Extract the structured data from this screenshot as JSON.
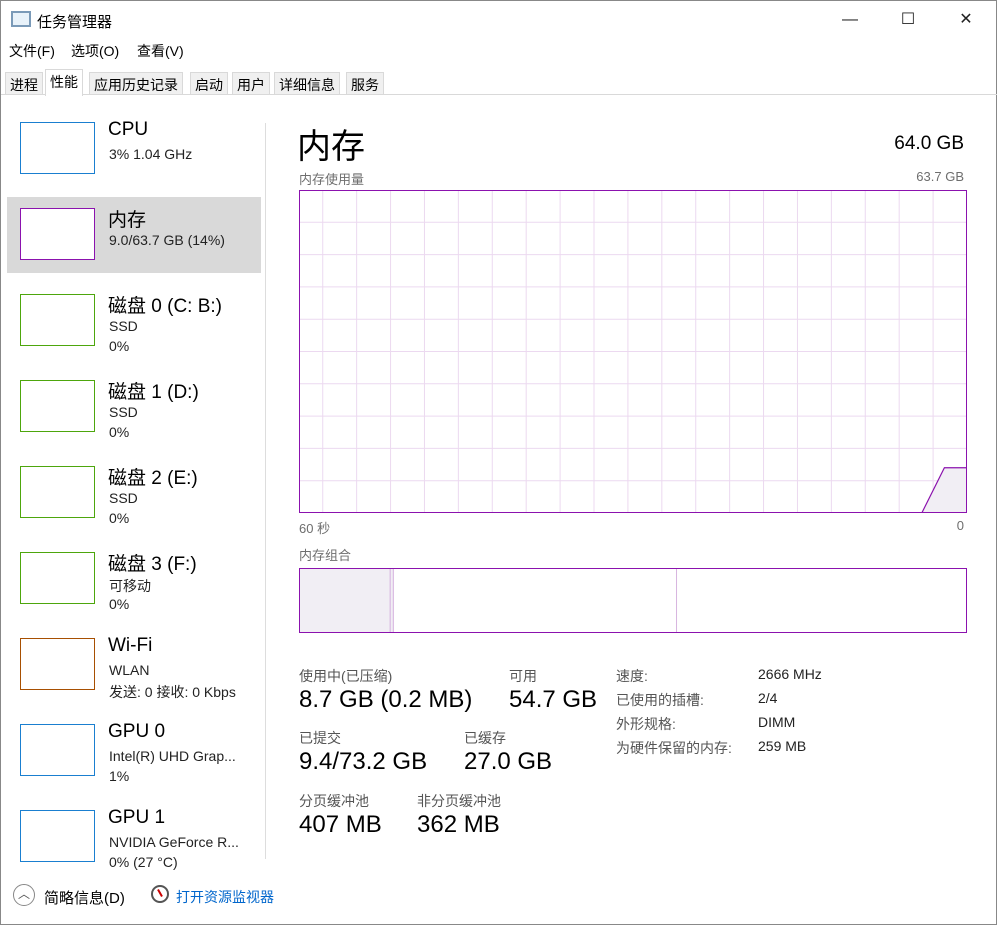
{
  "window": {
    "title": "任务管理器",
    "minimize": "—",
    "maximize": "☐",
    "close": "✕"
  },
  "menu": [
    "文件(F)",
    "选项(O)",
    "查看(V)"
  ],
  "tabs": [
    "进程",
    "性能",
    "应用历史记录",
    "启动",
    "用户",
    "详细信息",
    "服务"
  ],
  "active_tab": "性能",
  "sidebar": [
    {
      "name": "CPU",
      "lines": [
        "3% 1.04 GHz"
      ],
      "color": "#1a7fd0"
    },
    {
      "name": "内存",
      "lines": [
        "9.0/63.7 GB (14%)"
      ],
      "color": "#8b12ae",
      "selected": true
    },
    {
      "name": "磁盘 0 (C: B:)",
      "lines": [
        "SSD",
        "0%"
      ],
      "color": "#4da60c"
    },
    {
      "name": "磁盘 1 (D:)",
      "lines": [
        "SSD",
        "0%"
      ],
      "color": "#4da60c"
    },
    {
      "name": "磁盘 2 (E:)",
      "lines": [
        "SSD",
        "0%"
      ],
      "color": "#4da60c"
    },
    {
      "name": "磁盘 3 (F:)",
      "lines": [
        "可移动",
        "0%"
      ],
      "color": "#4da60c"
    },
    {
      "name": "Wi-Fi",
      "lines": [
        "WLAN",
        "发送: 0 接收: 0 Kbps"
      ],
      "color": "#a74f01"
    },
    {
      "name": "GPU 0",
      "lines": [
        "Intel(R) UHD Grap...",
        "1%"
      ],
      "color": "#1a7fd0"
    },
    {
      "name": "GPU 1",
      "lines": [
        "NVIDIA GeForce R...",
        "0% (27 °C)"
      ],
      "color": "#1a7fd0"
    }
  ],
  "main": {
    "title": "内存",
    "total": "64.0 GB",
    "usage_label": "内存使用量",
    "usage_max": "63.7 GB",
    "x_left": "60 秒",
    "x_right": "0",
    "usage_history_percent": [
      0,
      0,
      0,
      0,
      0,
      0,
      0,
      0,
      0,
      0,
      0,
      0,
      0,
      0,
      0,
      0,
      0,
      0,
      0,
      14,
      14
    ],
    "composition_label": "内存组合",
    "composition": {
      "in_use_gb": 8.7,
      "modified_gb": 0.3,
      "standby_gb": 27.0,
      "free_gb": 27.7
    },
    "stats": {
      "in_use_label": "使用中(已压缩)",
      "in_use": "8.7 GB (0.2 MB)",
      "available_label": "可用",
      "available": "54.7 GB",
      "committed_label": "已提交",
      "committed": "9.4/73.2 GB",
      "cached_label": "已缓存",
      "cached": "27.0 GB",
      "paged_label": "分页缓冲池",
      "paged": "407 MB",
      "nonpaged_label": "非分页缓冲池",
      "nonpaged": "362 MB"
    },
    "details": [
      {
        "k": "速度:",
        "v": "2666 MHz"
      },
      {
        "k": "已使用的插槽:",
        "v": "2/4"
      },
      {
        "k": "外形规格:",
        "v": "DIMM"
      },
      {
        "k": "为硬件保留的内存:",
        "v": "259 MB"
      }
    ]
  },
  "footer": {
    "less_details": "简略信息(D)",
    "open_monitor": "打开资源监视器"
  }
}
